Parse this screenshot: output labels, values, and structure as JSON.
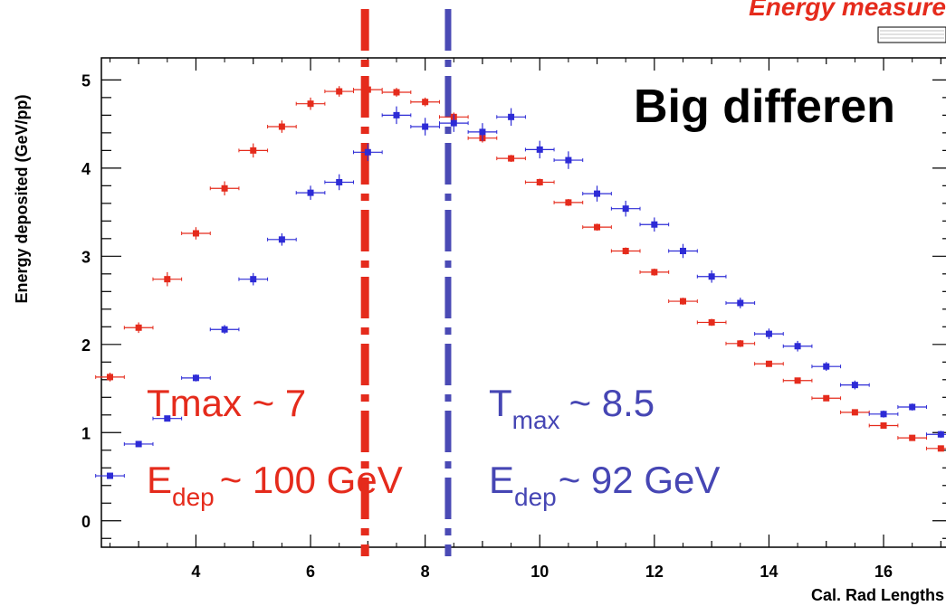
{
  "colors": {
    "red": "#e52b1c",
    "blue": "#2d2bd6",
    "red_line": "#e52b1c",
    "blue_line": "#4a4ab5",
    "red_text": "#e52b1c",
    "blue_text": "#4646b4"
  },
  "title": "Energy measure",
  "headline": "Big differen",
  "annotations": {
    "red_tmax": "Tmax ~ 7",
    "red_edep_prefix": "E",
    "red_edep_sub": "dep",
    "red_edep_value": "~  100 GeV",
    "blue_tmax_prefix": "T",
    "blue_tmax_sub": "max",
    "blue_tmax_value": "~ 8.5",
    "blue_edep_prefix": "E",
    "blue_edep_sub": "dep",
    "blue_edep_value": "~  92 GeV"
  },
  "chart_data": {
    "type": "scatter",
    "title": "Energy measure",
    "xlabel": "Cal. Rad Lengths",
    "ylabel": "Energy deposited (GeV/pp)",
    "xlim": [
      2.35,
      17.2
    ],
    "ylim": [
      -0.3,
      5.25
    ],
    "xticks": [
      "4",
      "6",
      "8",
      "10",
      "12",
      "14",
      "16"
    ],
    "yticks": [
      "0",
      "1",
      "2",
      "3",
      "4",
      "5"
    ],
    "grid": false,
    "vlines": [
      {
        "x": 6.95,
        "series": "red"
      },
      {
        "x": 8.4,
        "series": "blue"
      }
    ],
    "series": [
      {
        "color": "red",
        "x_err": 0.25,
        "points": [
          [
            2.5,
            1.63,
            0.05
          ],
          [
            3.0,
            2.19,
            0.06
          ],
          [
            3.5,
            2.74,
            0.08
          ],
          [
            4.0,
            3.26,
            0.07
          ],
          [
            4.5,
            3.77,
            0.08
          ],
          [
            5.0,
            4.2,
            0.08
          ],
          [
            5.5,
            4.47,
            0.07
          ],
          [
            6.0,
            4.73,
            0.07
          ],
          [
            6.5,
            4.87,
            0.06
          ],
          [
            7.0,
            4.89,
            0.05
          ],
          [
            7.5,
            4.86,
            0.05
          ],
          [
            8.0,
            4.75,
            0.05
          ],
          [
            8.5,
            4.58,
            0.05
          ],
          [
            9.0,
            4.34,
            0.05
          ],
          [
            9.5,
            4.11,
            0.04
          ],
          [
            10.0,
            3.84,
            0.04
          ],
          [
            10.5,
            3.61,
            0.04
          ],
          [
            11.0,
            3.33,
            0.04
          ],
          [
            11.5,
            3.06,
            0.04
          ],
          [
            12.0,
            2.82,
            0.04
          ],
          [
            12.5,
            2.49,
            0.04
          ],
          [
            13.0,
            2.25,
            0.04
          ],
          [
            13.5,
            2.01,
            0.04
          ],
          [
            14.0,
            1.78,
            0.03
          ],
          [
            14.5,
            1.59,
            0.03
          ],
          [
            15.0,
            1.39,
            0.03
          ],
          [
            15.5,
            1.23,
            0.03
          ],
          [
            16.0,
            1.08,
            0.03
          ],
          [
            16.5,
            0.94,
            0.02
          ],
          [
            17.0,
            0.82,
            0.02
          ]
        ]
      },
      {
        "color": "blue",
        "x_err": 0.25,
        "points": [
          [
            2.5,
            0.51,
            0.02
          ],
          [
            3.0,
            0.87,
            0.02
          ],
          [
            3.5,
            1.16,
            0.03
          ],
          [
            4.0,
            1.62,
            0.04
          ],
          [
            4.5,
            2.17,
            0.05
          ],
          [
            5.0,
            2.74,
            0.07
          ],
          [
            5.5,
            3.19,
            0.07
          ],
          [
            6.0,
            3.72,
            0.08
          ],
          [
            6.5,
            3.84,
            0.09
          ],
          [
            7.0,
            4.18,
            0.1
          ],
          [
            7.5,
            4.6,
            0.1
          ],
          [
            8.0,
            4.47,
            0.1
          ],
          [
            8.5,
            4.51,
            0.1
          ],
          [
            9.0,
            4.41,
            0.1
          ],
          [
            9.5,
            4.58,
            0.1
          ],
          [
            10.0,
            4.21,
            0.1
          ],
          [
            10.5,
            4.09,
            0.1
          ],
          [
            11.0,
            3.71,
            0.09
          ],
          [
            11.5,
            3.54,
            0.09
          ],
          [
            12.0,
            3.36,
            0.08
          ],
          [
            12.5,
            3.06,
            0.08
          ],
          [
            13.0,
            2.77,
            0.07
          ],
          [
            13.5,
            2.47,
            0.06
          ],
          [
            14.0,
            2.12,
            0.06
          ],
          [
            14.5,
            1.98,
            0.06
          ],
          [
            15.0,
            1.75,
            0.05
          ],
          [
            15.5,
            1.54,
            0.05
          ],
          [
            16.0,
            1.21,
            0.04
          ],
          [
            16.5,
            1.29,
            0.04
          ],
          [
            17.0,
            0.98,
            0.04
          ]
        ]
      }
    ]
  }
}
